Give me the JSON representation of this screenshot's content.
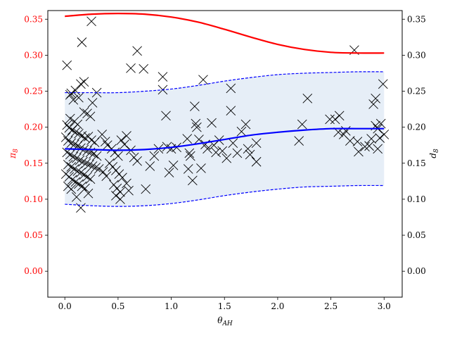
{
  "chart_data": {
    "type": "scatter",
    "xlabel": "θ_AH",
    "ylabel_left": "π_8",
    "ylabel_right": "d_8",
    "xlim": [
      -0.16,
      3.17
    ],
    "ylim": [
      -0.036,
      0.362
    ],
    "xticks": [
      "0.0",
      "0.5",
      "1.0",
      "1.5",
      "2.0",
      "2.5",
      "3.0"
    ],
    "xtick_values": [
      0.0,
      0.5,
      1.0,
      1.5,
      2.0,
      2.5,
      3.0
    ],
    "yticks": [
      "0.00",
      "0.05",
      "0.10",
      "0.15",
      "0.20",
      "0.25",
      "0.30",
      "0.35"
    ],
    "ytick_values": [
      0.0,
      0.05,
      0.1,
      0.15,
      0.2,
      0.25,
      0.3,
      0.35
    ],
    "colors": {
      "red_curve": "#ff0000",
      "blue_curve": "#0000ff",
      "band_fill": "#e6eef7",
      "left_axis_text": "#ff0000",
      "markers": "#000000"
    },
    "red_curve": {
      "x": [
        0.0,
        0.25,
        0.5,
        0.75,
        1.0,
        1.25,
        1.5,
        1.75,
        2.0,
        2.25,
        2.5,
        2.75,
        3.0
      ],
      "y": [
        0.354,
        0.357,
        0.358,
        0.357,
        0.353,
        0.346,
        0.336,
        0.325,
        0.315,
        0.308,
        0.304,
        0.303,
        0.303
      ]
    },
    "blue_mean": {
      "x": [
        0.0,
        0.25,
        0.5,
        0.75,
        1.0,
        1.25,
        1.5,
        1.75,
        2.0,
        2.25,
        2.5,
        2.75,
        3.0
      ],
      "y": [
        0.17,
        0.169,
        0.168,
        0.169,
        0.172,
        0.177,
        0.183,
        0.189,
        0.193,
        0.196,
        0.198,
        0.198,
        0.198
      ]
    },
    "blue_upper": {
      "x": [
        0.0,
        0.25,
        0.5,
        0.75,
        1.0,
        1.25,
        1.5,
        1.75,
        2.0,
        2.25,
        2.5,
        2.75,
        3.0
      ],
      "y": [
        0.248,
        0.248,
        0.248,
        0.25,
        0.253,
        0.258,
        0.264,
        0.269,
        0.273,
        0.275,
        0.276,
        0.277,
        0.277
      ]
    },
    "blue_lower": {
      "x": [
        0.0,
        0.25,
        0.5,
        0.75,
        1.0,
        1.25,
        1.5,
        1.75,
        2.0,
        2.25,
        2.5,
        2.75,
        3.0
      ],
      "y": [
        0.093,
        0.091,
        0.09,
        0.091,
        0.094,
        0.099,
        0.105,
        0.11,
        0.114,
        0.117,
        0.118,
        0.119,
        0.119
      ]
    },
    "points": [
      [
        0.02,
        0.286
      ],
      [
        0.05,
        0.245
      ],
      [
        0.06,
        0.247
      ],
      [
        0.08,
        0.238
      ],
      [
        0.16,
        0.318
      ],
      [
        0.25,
        0.347
      ],
      [
        0.15,
        0.26
      ],
      [
        0.18,
        0.263
      ],
      [
        0.1,
        0.251
      ],
      [
        0.13,
        0.241
      ],
      [
        0.3,
        0.248
      ],
      [
        0.26,
        0.234
      ],
      [
        0.18,
        0.221
      ],
      [
        0.21,
        0.219
      ],
      [
        0.24,
        0.215
      ],
      [
        0.05,
        0.212
      ],
      [
        0.09,
        0.208
      ],
      [
        0.12,
        0.204
      ],
      [
        0.02,
        0.203
      ],
      [
        0.04,
        0.199
      ],
      [
        0.07,
        0.196
      ],
      [
        0.1,
        0.193
      ],
      [
        0.13,
        0.191
      ],
      [
        0.16,
        0.188
      ],
      [
        0.19,
        0.185
      ],
      [
        0.22,
        0.187
      ],
      [
        0.25,
        0.182
      ],
      [
        0.28,
        0.179
      ],
      [
        0.01,
        0.186
      ],
      [
        0.03,
        0.181
      ],
      [
        0.06,
        0.178
      ],
      [
        0.09,
        0.176
      ],
      [
        0.12,
        0.174
      ],
      [
        0.15,
        0.171
      ],
      [
        0.18,
        0.169
      ],
      [
        0.21,
        0.167
      ],
      [
        0.24,
        0.165
      ],
      [
        0.27,
        0.163
      ],
      [
        0.3,
        0.16
      ],
      [
        0.02,
        0.165
      ],
      [
        0.05,
        0.162
      ],
      [
        0.08,
        0.159
      ],
      [
        0.11,
        0.157
      ],
      [
        0.14,
        0.154
      ],
      [
        0.17,
        0.152
      ],
      [
        0.2,
        0.15
      ],
      [
        0.23,
        0.148
      ],
      [
        0.26,
        0.146
      ],
      [
        0.29,
        0.144
      ],
      [
        0.32,
        0.142
      ],
      [
        0.03,
        0.148
      ],
      [
        0.06,
        0.145
      ],
      [
        0.09,
        0.142
      ],
      [
        0.12,
        0.139
      ],
      [
        0.15,
        0.137
      ],
      [
        0.18,
        0.134
      ],
      [
        0.21,
        0.131
      ],
      [
        0.24,
        0.128
      ],
      [
        0.01,
        0.135
      ],
      [
        0.04,
        0.131
      ],
      [
        0.07,
        0.127
      ],
      [
        0.1,
        0.124
      ],
      [
        0.13,
        0.121
      ],
      [
        0.16,
        0.118
      ],
      [
        0.19,
        0.115
      ],
      [
        0.03,
        0.118
      ],
      [
        0.06,
        0.114
      ],
      [
        0.15,
        0.088
      ],
      [
        0.11,
        0.103
      ],
      [
        0.22,
        0.108
      ],
      [
        0.35,
        0.19
      ],
      [
        0.38,
        0.18
      ],
      [
        0.4,
        0.175
      ],
      [
        0.44,
        0.17
      ],
      [
        0.47,
        0.165
      ],
      [
        0.5,
        0.16
      ],
      [
        0.53,
        0.182
      ],
      [
        0.56,
        0.176
      ],
      [
        0.42,
        0.15
      ],
      [
        0.45,
        0.145
      ],
      [
        0.48,
        0.14
      ],
      [
        0.51,
        0.135
      ],
      [
        0.54,
        0.13
      ],
      [
        0.36,
        0.138
      ],
      [
        0.39,
        0.132
      ],
      [
        0.46,
        0.12
      ],
      [
        0.49,
        0.115
      ],
      [
        0.52,
        0.11
      ],
      [
        0.48,
        0.105
      ],
      [
        0.52,
        0.1
      ],
      [
        0.58,
        0.122
      ],
      [
        0.6,
        0.112
      ],
      [
        0.62,
        0.168
      ],
      [
        0.65,
        0.158
      ],
      [
        0.68,
        0.153
      ],
      [
        0.58,
        0.188
      ],
      [
        0.62,
        0.282
      ],
      [
        0.68,
        0.306
      ],
      [
        0.74,
        0.281
      ],
      [
        0.76,
        0.114
      ],
      [
        0.8,
        0.146
      ],
      [
        0.84,
        0.16
      ],
      [
        0.88,
        0.17
      ],
      [
        0.92,
        0.27
      ],
      [
        0.92,
        0.252
      ],
      [
        0.95,
        0.216
      ],
      [
        0.96,
        0.173
      ],
      [
        1.0,
        0.17
      ],
      [
        1.02,
        0.147
      ],
      [
        0.98,
        0.137
      ],
      [
        1.05,
        0.172
      ],
      [
        1.15,
        0.184
      ],
      [
        1.17,
        0.164
      ],
      [
        1.18,
        0.16
      ],
      [
        1.16,
        0.142
      ],
      [
        1.2,
        0.126
      ],
      [
        1.22,
        0.229
      ],
      [
        1.23,
        0.205
      ],
      [
        1.24,
        0.2
      ],
      [
        1.26,
        0.183
      ],
      [
        1.28,
        0.143
      ],
      [
        1.3,
        0.266
      ],
      [
        1.32,
        0.176
      ],
      [
        1.34,
        0.17
      ],
      [
        1.38,
        0.206
      ],
      [
        1.4,
        0.175
      ],
      [
        1.42,
        0.165
      ],
      [
        1.45,
        0.182
      ],
      [
        1.48,
        0.167
      ],
      [
        1.52,
        0.157
      ],
      [
        1.56,
        0.254
      ],
      [
        1.56,
        0.223
      ],
      [
        1.58,
        0.178
      ],
      [
        1.62,
        0.164
      ],
      [
        1.66,
        0.194
      ],
      [
        1.7,
        0.204
      ],
      [
        1.72,
        0.17
      ],
      [
        1.74,
        0.162
      ],
      [
        1.8,
        0.178
      ],
      [
        1.8,
        0.152
      ],
      [
        2.2,
        0.181
      ],
      [
        2.23,
        0.204
      ],
      [
        2.28,
        0.24
      ],
      [
        2.49,
        0.211
      ],
      [
        2.54,
        0.211
      ],
      [
        2.58,
        0.216
      ],
      [
        2.57,
        0.193
      ],
      [
        2.62,
        0.19
      ],
      [
        2.64,
        0.195
      ],
      [
        2.68,
        0.181
      ],
      [
        2.72,
        0.307
      ],
      [
        2.75,
        0.18
      ],
      [
        2.76,
        0.166
      ],
      [
        2.82,
        0.173
      ],
      [
        2.86,
        0.174
      ],
      [
        2.9,
        0.232
      ],
      [
        2.92,
        0.24
      ],
      [
        2.92,
        0.202
      ],
      [
        2.94,
        0.198
      ],
      [
        2.94,
        0.17
      ],
      [
        2.96,
        0.185
      ],
      [
        2.97,
        0.205
      ],
      [
        2.99,
        0.26
      ],
      [
        3.0,
        0.19
      ],
      [
        2.88,
        0.184
      ]
    ]
  }
}
